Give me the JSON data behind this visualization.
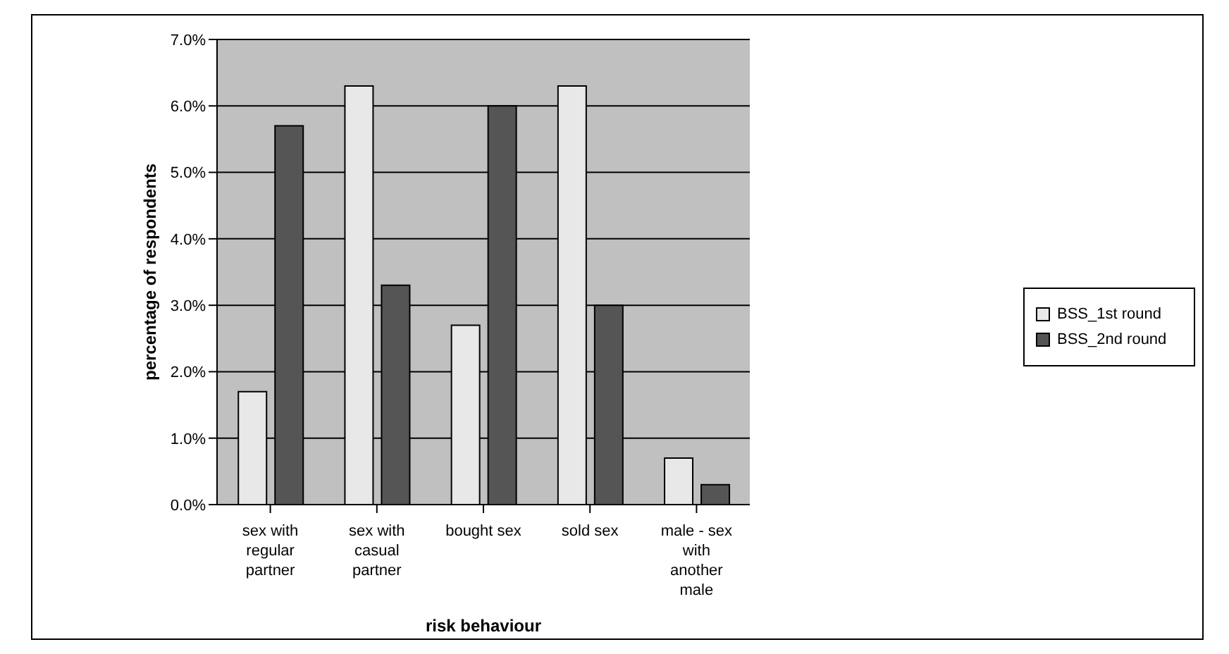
{
  "chart_data": {
    "type": "bar",
    "xlabel": "risk behaviour",
    "ylabel": "percentage of respondents",
    "categories": [
      "sex with regular partner",
      "sex with casual partner",
      "bought sex",
      "sold sex",
      "male - sex with another male"
    ],
    "series": [
      {
        "name": "BSS_1st round",
        "color": "#e8e8e8",
        "values": [
          1.7,
          6.3,
          2.7,
          6.3,
          0.7
        ]
      },
      {
        "name": "BSS_2nd round",
        "color": "#555555",
        "values": [
          5.7,
          3.3,
          6.0,
          3.0,
          0.3
        ]
      }
    ],
    "ylim": [
      0,
      7
    ],
    "yticks": [
      {
        "value": 0,
        "label": "0.0%"
      },
      {
        "value": 1,
        "label": "1.0%"
      },
      {
        "value": 2,
        "label": "2.0%"
      },
      {
        "value": 3,
        "label": "3.0%"
      },
      {
        "value": 4,
        "label": "4.0%"
      },
      {
        "value": 5,
        "label": "5.0%"
      },
      {
        "value": 6,
        "label": "6.0%"
      },
      {
        "value": 7,
        "label": "7.0%"
      }
    ],
    "grid": "y",
    "legend": "right"
  }
}
